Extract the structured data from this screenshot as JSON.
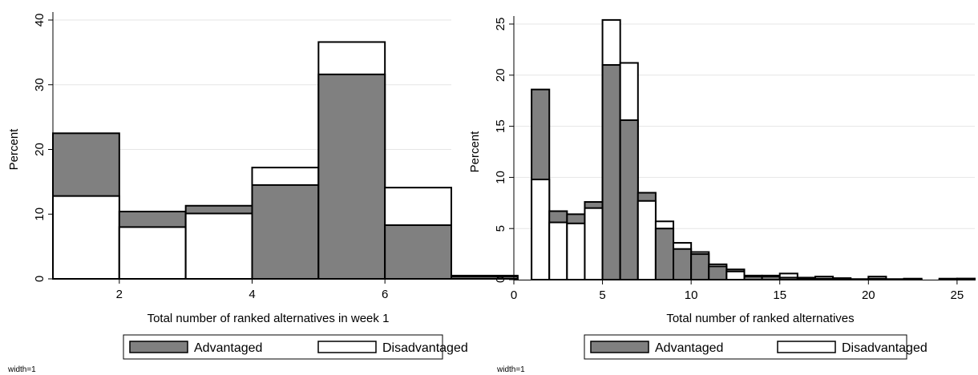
{
  "chart_data": [
    {
      "type": "bar",
      "xlabel": "Total number of ranked alternatives in week 1",
      "ylabel": "Percent",
      "xlim": [
        1,
        7
      ],
      "ylim": [
        0,
        40
      ],
      "xticks": [
        "2",
        "4",
        "6"
      ],
      "xtick_values": [
        2,
        4,
        6
      ],
      "yticks": [
        "0",
        "10",
        "20",
        "30",
        "40"
      ],
      "ytick_values": [
        0,
        10,
        20,
        30,
        40
      ],
      "grid": true,
      "legend": "bottom",
      "bin_starts": [
        1,
        2,
        3,
        4,
        5,
        6,
        7
      ],
      "bin_width": 1,
      "series": [
        {
          "name": "Advantaged",
          "color": "#808080",
          "values": [
            22.5,
            10.4,
            11.3,
            14.5,
            31.6,
            8.3,
            0.5
          ]
        },
        {
          "name": "Disadvantaged",
          "color": "#ffffff",
          "values": [
            12.8,
            8.0,
            10.1,
            17.2,
            36.6,
            14.1,
            0.3
          ]
        }
      ],
      "note": "width=1"
    },
    {
      "type": "bar",
      "xlabel": "Total number of ranked alternatives",
      "ylabel": "Percent",
      "xlim": [
        0,
        26
      ],
      "ylim": [
        0,
        25
      ],
      "xticks": [
        "0",
        "5",
        "10",
        "15",
        "20",
        "25"
      ],
      "xtick_values": [
        0,
        5,
        10,
        15,
        20,
        25
      ],
      "yticks": [
        "0",
        "5",
        "10",
        "15",
        "20",
        "25"
      ],
      "ytick_values": [
        0,
        5,
        10,
        15,
        20,
        25
      ],
      "grid": true,
      "legend": "bottom",
      "bin_starts": [
        1,
        2,
        3,
        4,
        5,
        6,
        7,
        8,
        9,
        10,
        11,
        12,
        13,
        14,
        15,
        16,
        17,
        18,
        19,
        20,
        21,
        22,
        24,
        25
      ],
      "bin_width": 1,
      "series": [
        {
          "name": "Advantaged",
          "color": "#808080",
          "values": [
            18.6,
            6.7,
            6.4,
            7.6,
            21.0,
            15.6,
            8.5,
            5.0,
            3.0,
            2.5,
            1.3,
            1.0,
            0.3,
            0.3,
            0.2,
            0.1,
            0.1,
            0.1,
            0.05,
            0.1,
            0.05,
            0.05,
            0.1,
            0.1
          ]
        },
        {
          "name": "Disadvantaged",
          "color": "#ffffff",
          "values": [
            9.8,
            5.6,
            5.5,
            7.0,
            25.4,
            21.2,
            7.7,
            5.7,
            3.6,
            2.7,
            1.5,
            0.8,
            0.4,
            0.4,
            0.6,
            0.2,
            0.3,
            0.15,
            0.05,
            0.3,
            0.05,
            0.1,
            0.05,
            0.1
          ]
        }
      ],
      "note": "width=1"
    }
  ]
}
